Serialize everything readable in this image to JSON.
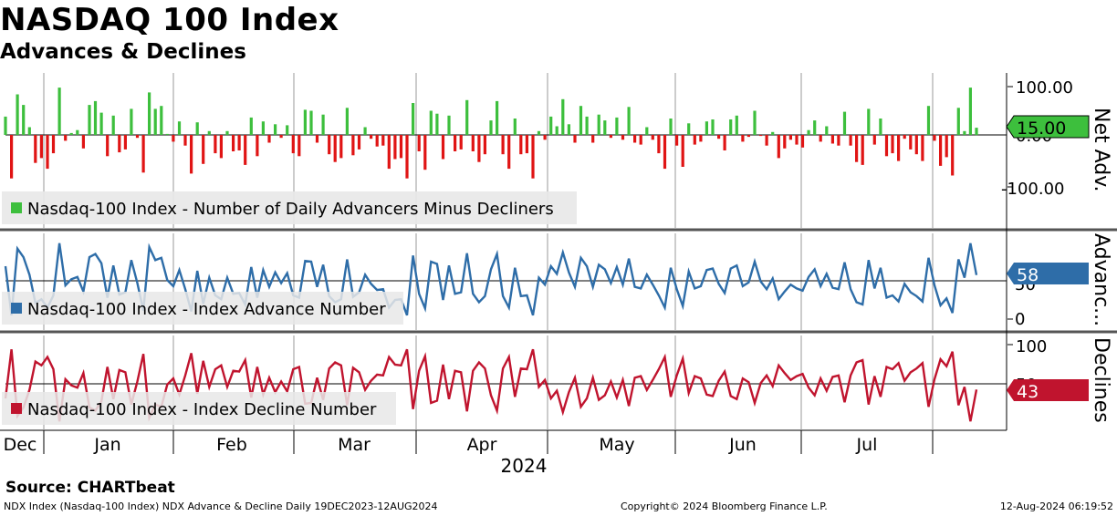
{
  "title": "NASDAQ 100 Index",
  "subtitle": "Advances & Declines",
  "source": "Source: CHARTbeat",
  "footer": {
    "left": "NDX Index (Nasdaq-100 Index) NDX Advance & Decline  Daily 19DEC2023-12AUG2024",
    "center": "Copyright© 2024 Bloomberg Finance L.P.",
    "right": "12-Aug-2024 06:19:52"
  },
  "colors": {
    "positive": "#3dbf3d",
    "negative": "#e01414",
    "advance": "#2e6da8",
    "decline": "#c0142e"
  },
  "chart_data": {
    "type": "line",
    "x_ticks": [
      "Dec",
      "Jan",
      "Feb",
      "Mar",
      "Apr",
      "May",
      "Jun",
      "Jul"
    ],
    "x_year": "2024",
    "panels": [
      {
        "type": "bar",
        "axis_label": "Net Adv.",
        "y_ticks": [
          "100.00",
          "0.00",
          "-100.00"
        ],
        "ylim": [
          -150,
          120
        ],
        "last_value": "15.00",
        "legend": "Nasdaq-100 Index - Number of Daily Advancers Minus Decliners",
        "values": [
          38,
          -90,
          84,
          62,
          16,
          -58,
          -48,
          -70,
          -38,
          98,
          -12,
          4,
          10,
          -28,
          62,
          70,
          46,
          -44,
          40,
          -36,
          -30,
          54,
          -6,
          -78,
          88,
          54,
          60,
          2,
          -14,
          28,
          -22,
          -80,
          26,
          -60,
          8,
          -38,
          -48,
          8,
          -34,
          -32,
          -62,
          36,
          -44,
          28,
          -16,
          22,
          -6,
          20,
          -38,
          -44,
          52,
          50,
          -16,
          42,
          -40,
          -56,
          -48,
          56,
          -42,
          -30,
          16,
          -8,
          -24,
          -22,
          -70,
          -50,
          -48,
          -90,
          66,
          -34,
          -72,
          50,
          44,
          -50,
          40,
          -34,
          -30,
          72,
          -34,
          -56,
          -40,
          30,
          70,
          -40,
          -70,
          34,
          -40,
          -38,
          -90,
          8,
          -10,
          38,
          18,
          74,
          22,
          -16,
          60,
          38,
          -16,
          42,
          30,
          -6,
          36,
          -10,
          58,
          -16,
          -20,
          16,
          -10,
          -38,
          -70,
          34,
          -22,
          -66,
          24,
          -20,
          -14,
          28,
          32,
          -8,
          -32,
          32,
          40,
          -14,
          -4,
          50,
          -2,
          -22,
          6,
          -48,
          -28,
          -10,
          -20,
          -26,
          10,
          30,
          -14,
          18,
          -18,
          -22,
          48,
          -22,
          -56,
          -62,
          54,
          -20,
          34,
          -44,
          -38,
          -54,
          -8,
          -30,
          -40,
          -54,
          60,
          -12,
          -64,
          -46,
          -84,
          56,
          8,
          98,
          15
        ]
      },
      {
        "type": "line",
        "axis_label": "Advanc...",
        "y_ticks": [
          "50",
          "0"
        ],
        "ylim": [
          0,
          100
        ],
        "last_value": "58",
        "legend": "Nasdaq-100 Index - Index Advance Number"
      },
      {
        "type": "line",
        "axis_label": "Declines",
        "y_ticks": [
          "100",
          "50"
        ],
        "ylim": [
          0,
          100
        ],
        "last_value": "43",
        "legend": "Nasdaq-100 Index - Index Decline Number"
      }
    ]
  }
}
